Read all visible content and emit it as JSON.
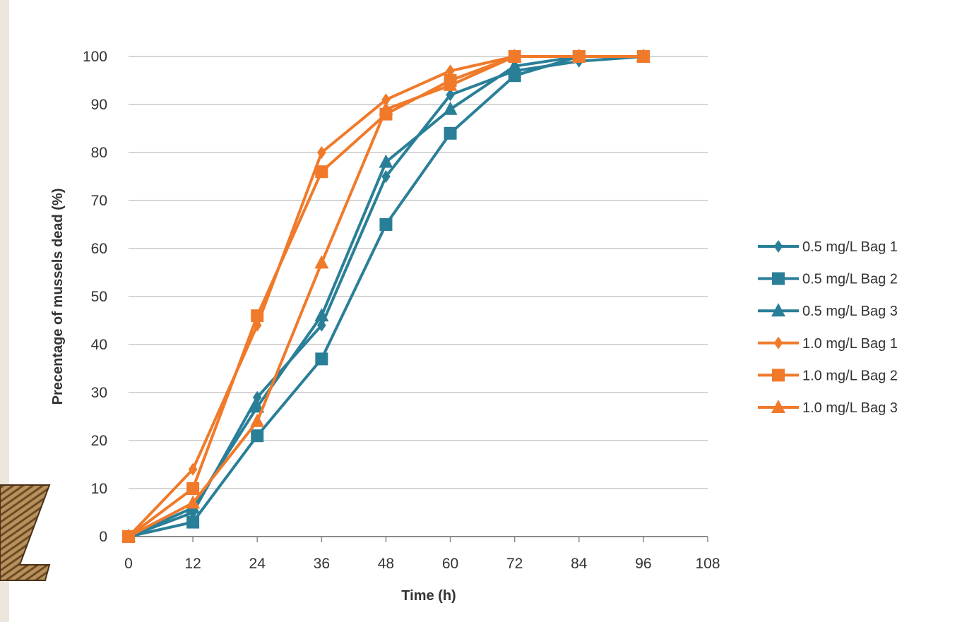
{
  "chart_data": {
    "type": "line",
    "title": "",
    "xlabel": "Time (h)",
    "ylabel": "Precentage of mussels dead (%)",
    "xlim": [
      0,
      108
    ],
    "ylim": [
      0,
      100
    ],
    "xticks": [
      "0",
      "12",
      "24",
      "36",
      "48",
      "60",
      "72",
      "84",
      "96",
      "108"
    ],
    "yticks": [
      "0",
      "10",
      "20",
      "30",
      "40",
      "50",
      "60",
      "70",
      "80",
      "90",
      "100"
    ],
    "grid": "horizontal",
    "legend_position": "right",
    "x": [
      0,
      12,
      24,
      36,
      48,
      60,
      72,
      84,
      96
    ],
    "series": [
      {
        "name": "0.5 mg/L Bag 1",
        "color": "#2a7f98",
        "marker": "diamond",
        "values": [
          0,
          5,
          29,
          44,
          75,
          92,
          97,
          99,
          100
        ]
      },
      {
        "name": "0.5 mg/L Bag 2",
        "color": "#2a7f98",
        "marker": "square",
        "values": [
          0,
          3,
          21,
          37,
          65,
          84,
          96,
          100,
          100
        ]
      },
      {
        "name": "0.5 mg/L Bag 3",
        "color": "#2a7f98",
        "marker": "triangle",
        "values": [
          0,
          6,
          27,
          46,
          78,
          89,
          98,
          100,
          100
        ]
      },
      {
        "name": "1.0 mg/L Bag 1",
        "color": "#f07a2a",
        "marker": "diamond",
        "values": [
          0,
          14,
          44,
          80,
          91,
          97,
          100,
          100,
          100
        ]
      },
      {
        "name": "1.0 mg/L Bag 2",
        "color": "#f07a2a",
        "marker": "square",
        "values": [
          0,
          10,
          46,
          76,
          88,
          95,
          100,
          100,
          100
        ]
      },
      {
        "name": "1.0 mg/L Bag 3",
        "color": "#f07a2a",
        "marker": "triangle",
        "values": [
          0,
          7,
          24,
          57,
          89,
          94,
          100,
          100,
          100
        ]
      }
    ]
  }
}
